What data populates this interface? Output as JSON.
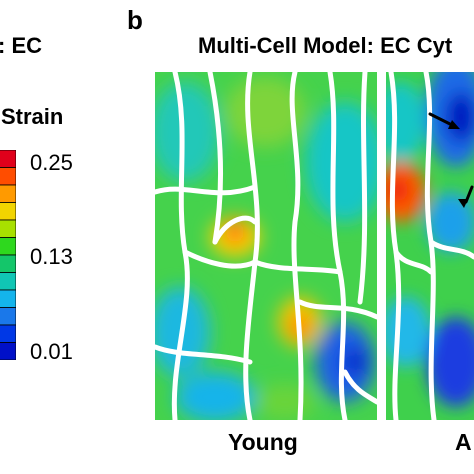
{
  "left_panel": {
    "title_fragment": ": EC",
    "scale_title": "Strain",
    "scale_ticks": [
      "0.25",
      "0.13",
      "0.01"
    ],
    "colorbar_colors": [
      "#e0001b",
      "#ff4d00",
      "#ff9a00",
      "#f2d400",
      "#a8e000",
      "#2ed81e",
      "#14c66a",
      "#10c6b4",
      "#14b4ec",
      "#1a78ea",
      "#0038e6",
      "#0010c8"
    ]
  },
  "panel_b": {
    "letter": "b",
    "title": "Multi-Cell Model: EC Cyt",
    "captions": [
      "Young",
      "A"
    ]
  },
  "colors": {
    "network": "#ffffff",
    "field_green": "#3bd34a",
    "hotspot": "#ff5a1a",
    "low_strain": "#1a4fe0",
    "arrow": "#000000"
  }
}
